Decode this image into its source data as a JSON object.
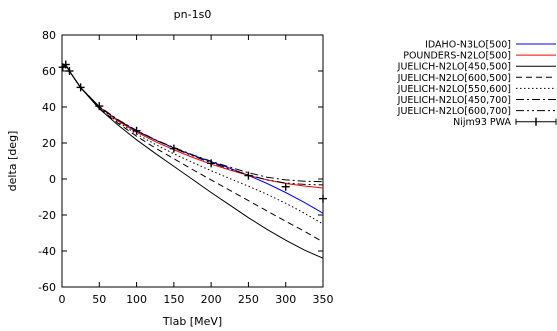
{
  "chart_data": {
    "type": "line",
    "title": "pn-1s0",
    "xlabel": "Tlab [MeV]",
    "ylabel": "delta [deg]",
    "xlim": [
      0,
      350
    ],
    "ylim": [
      -60,
      80
    ],
    "xticks": [
      0,
      50,
      100,
      150,
      200,
      250,
      300,
      350
    ],
    "yticks": [
      -60,
      -40,
      -20,
      0,
      20,
      40,
      60,
      80
    ],
    "grid": false,
    "legend_position": "outside-right",
    "series": [
      {
        "name": "IDAHO-N3LO[500]",
        "color": "#0000ff",
        "dash": "",
        "x": [
          1,
          5,
          10,
          25,
          50,
          75,
          100,
          125,
          150,
          175,
          200,
          225,
          250,
          275,
          300,
          325,
          350
        ],
        "y": [
          62.1,
          63.5,
          59.9,
          50.8,
          40.0,
          32.6,
          26.6,
          21.7,
          17.3,
          13.3,
          9.6,
          6.0,
          2.0,
          -2.5,
          -7.5,
          -13.0,
          -19.0
        ]
      },
      {
        "name": "POUNDERS-N2LO[500]",
        "color": "#ff0000",
        "dash": "",
        "x": [
          1,
          5,
          10,
          25,
          50,
          75,
          100,
          125,
          150,
          175,
          200,
          225,
          250,
          275,
          300,
          325,
          350
        ],
        "y": [
          62.1,
          63.5,
          59.9,
          50.8,
          40.0,
          32.3,
          26.0,
          20.8,
          16.2,
          12.0,
          8.2,
          5.0,
          2.0,
          -0.5,
          -2.5,
          -3.9,
          -5.0
        ]
      },
      {
        "name": "JUELICH-N2LO[450,500]",
        "color": "#000000",
        "dash": "",
        "x": [
          1,
          5,
          10,
          25,
          50,
          75,
          100,
          125,
          150,
          175,
          200,
          225,
          250,
          275,
          300,
          325,
          350
        ],
        "y": [
          62.1,
          63.5,
          59.9,
          50.8,
          39.0,
          30.0,
          21.8,
          14.3,
          7.0,
          -0.2,
          -7.5,
          -14.5,
          -21.5,
          -28.0,
          -34.0,
          -39.5,
          -44.0
        ]
      },
      {
        "name": "JUELICH-N2LO[600,500]",
        "color": "#000000",
        "dash": "6,4",
        "x": [
          1,
          5,
          10,
          25,
          50,
          75,
          100,
          125,
          150,
          175,
          200,
          225,
          250,
          275,
          300,
          325,
          350
        ],
        "y": [
          62.1,
          63.5,
          59.9,
          50.8,
          39.3,
          31.0,
          23.8,
          17.3,
          11.2,
          5.3,
          -0.5,
          -6.3,
          -12.0,
          -17.8,
          -23.5,
          -29.0,
          -35.0
        ]
      },
      {
        "name": "JUELICH-N2LO[550,600]",
        "color": "#000000",
        "dash": "1.5,2.5",
        "x": [
          1,
          5,
          10,
          25,
          50,
          75,
          100,
          125,
          150,
          175,
          200,
          225,
          250,
          275,
          300,
          325,
          350
        ],
        "y": [
          62.1,
          63.5,
          59.9,
          50.8,
          39.6,
          31.6,
          25.0,
          19.2,
          14.0,
          9.2,
          4.6,
          0.2,
          -4.0,
          -8.5,
          -13.5,
          -19.0,
          -25.0
        ]
      },
      {
        "name": "JUELICH-N2LO[450,700]",
        "color": "#000000",
        "dash": "8,3,2,3",
        "x": [
          1,
          5,
          10,
          25,
          50,
          75,
          100,
          125,
          150,
          175,
          200,
          225,
          250,
          275,
          300,
          325,
          350
        ],
        "y": [
          62.1,
          63.5,
          59.9,
          50.8,
          40.2,
          33.0,
          27.0,
          21.9,
          17.5,
          13.5,
          9.9,
          6.6,
          3.5,
          1.0,
          -0.5,
          -1.2,
          -1.5
        ]
      },
      {
        "name": "JUELICH-N2LO[600,700]",
        "color": "#000000",
        "dash": "8,3,2,3,2,3",
        "x": [
          1,
          5,
          10,
          25,
          50,
          75,
          100,
          125,
          150,
          175,
          200,
          225,
          250,
          275,
          300,
          325,
          350
        ],
        "y": [
          62.1,
          63.5,
          59.9,
          50.8,
          40.1,
          32.8,
          26.8,
          21.7,
          17.1,
          12.9,
          9.0,
          5.5,
          2.3,
          -0.5,
          -2.2,
          -3.0,
          -3.3
        ]
      }
    ],
    "points": {
      "name": "Nijm93 PWA",
      "color": "#000000",
      "x": [
        1,
        5,
        10,
        25,
        50,
        100,
        150,
        200,
        250,
        300,
        350
      ],
      "y": [
        62.1,
        63.6,
        60.0,
        50.9,
        40.5,
        26.8,
        16.9,
        8.7,
        1.9,
        -4.3,
        -10.9
      ]
    }
  }
}
